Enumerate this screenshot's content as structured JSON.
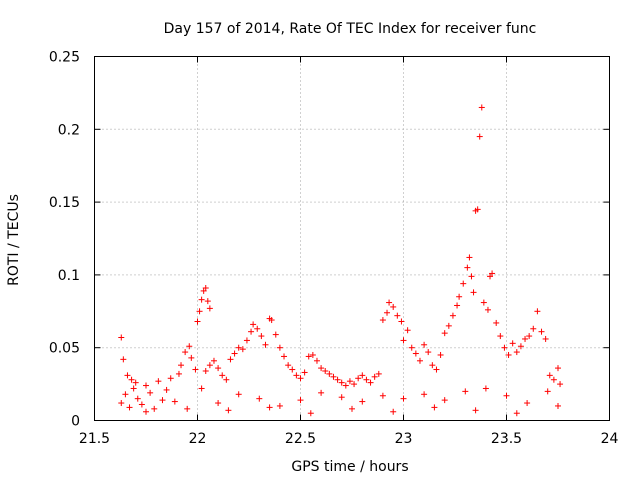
{
  "chart_data": {
    "type": "scatter",
    "title": "Day 157 of 2014, Rate Of TEC Index for receiver func",
    "xlabel": "GPS time / hours",
    "ylabel": "ROTI / TECUs",
    "xlim": [
      21.5,
      24
    ],
    "ylim": [
      0,
      0.25
    ],
    "x_ticks": [
      21.5,
      22,
      22.5,
      23,
      23.5,
      24
    ],
    "x_tick_labels": [
      "21.5",
      "22",
      "22.5",
      "23",
      "23.5",
      "24"
    ],
    "y_ticks": [
      0,
      0.05,
      0.1,
      0.15,
      0.2,
      0.25
    ],
    "y_tick_labels": [
      "0",
      "0.05",
      "0.1",
      "0.15",
      "0.2",
      "0.25"
    ],
    "grid": true,
    "marker": "+",
    "color": "#ff0000",
    "series": [
      {
        "name": "ROTI",
        "points": [
          [
            21.63,
            0.057
          ],
          [
            21.64,
            0.042
          ],
          [
            21.66,
            0.031
          ],
          [
            21.68,
            0.028
          ],
          [
            21.7,
            0.026
          ],
          [
            21.63,
            0.012
          ],
          [
            21.65,
            0.018
          ],
          [
            21.67,
            0.009
          ],
          [
            21.69,
            0.022
          ],
          [
            21.71,
            0.015
          ],
          [
            21.73,
            0.011
          ],
          [
            21.75,
            0.024
          ],
          [
            21.77,
            0.019
          ],
          [
            21.79,
            0.008
          ],
          [
            21.81,
            0.027
          ],
          [
            21.83,
            0.014
          ],
          [
            21.85,
            0.021
          ],
          [
            21.87,
            0.029
          ],
          [
            21.89,
            0.013
          ],
          [
            21.91,
            0.032
          ],
          [
            21.92,
            0.038
          ],
          [
            21.94,
            0.047
          ],
          [
            21.96,
            0.051
          ],
          [
            21.97,
            0.043
          ],
          [
            21.99,
            0.035
          ],
          [
            22.0,
            0.068
          ],
          [
            22.01,
            0.075
          ],
          [
            22.02,
            0.083
          ],
          [
            22.03,
            0.089
          ],
          [
            22.04,
            0.091
          ],
          [
            22.05,
            0.082
          ],
          [
            22.06,
            0.077
          ],
          [
            22.02,
            0.022
          ],
          [
            22.04,
            0.034
          ],
          [
            22.06,
            0.038
          ],
          [
            22.08,
            0.041
          ],
          [
            22.1,
            0.036
          ],
          [
            22.12,
            0.031
          ],
          [
            22.14,
            0.028
          ],
          [
            22.16,
            0.042
          ],
          [
            22.18,
            0.046
          ],
          [
            22.2,
            0.05
          ],
          [
            22.22,
            0.049
          ],
          [
            22.24,
            0.055
          ],
          [
            22.26,
            0.061
          ],
          [
            22.27,
            0.066
          ],
          [
            22.29,
            0.063
          ],
          [
            22.31,
            0.058
          ],
          [
            22.33,
            0.052
          ],
          [
            22.35,
            0.07
          ],
          [
            22.36,
            0.069
          ],
          [
            22.38,
            0.059
          ],
          [
            22.4,
            0.05
          ],
          [
            22.42,
            0.044
          ],
          [
            22.44,
            0.038
          ],
          [
            22.46,
            0.035
          ],
          [
            22.48,
            0.031
          ],
          [
            22.5,
            0.029
          ],
          [
            22.52,
            0.033
          ],
          [
            22.54,
            0.044
          ],
          [
            22.56,
            0.045
          ],
          [
            22.58,
            0.041
          ],
          [
            22.6,
            0.036
          ],
          [
            22.62,
            0.034
          ],
          [
            22.64,
            0.032
          ],
          [
            22.66,
            0.03
          ],
          [
            22.68,
            0.028
          ],
          [
            22.7,
            0.026
          ],
          [
            22.72,
            0.024
          ],
          [
            22.74,
            0.027
          ],
          [
            22.76,
            0.025
          ],
          [
            22.78,
            0.029
          ],
          [
            22.8,
            0.031
          ],
          [
            22.82,
            0.028
          ],
          [
            22.84,
            0.026
          ],
          [
            22.86,
            0.03
          ],
          [
            22.88,
            0.032
          ],
          [
            22.9,
            0.069
          ],
          [
            22.92,
            0.074
          ],
          [
            22.93,
            0.081
          ],
          [
            22.95,
            0.078
          ],
          [
            22.97,
            0.072
          ],
          [
            22.99,
            0.068
          ],
          [
            23.0,
            0.055
          ],
          [
            23.02,
            0.062
          ],
          [
            23.04,
            0.05
          ],
          [
            23.06,
            0.046
          ],
          [
            23.08,
            0.041
          ],
          [
            23.1,
            0.052
          ],
          [
            23.12,
            0.047
          ],
          [
            23.14,
            0.038
          ],
          [
            23.16,
            0.035
          ],
          [
            23.18,
            0.045
          ],
          [
            23.2,
            0.06
          ],
          [
            23.22,
            0.065
          ],
          [
            23.24,
            0.072
          ],
          [
            23.26,
            0.079
          ],
          [
            23.27,
            0.085
          ],
          [
            23.29,
            0.094
          ],
          [
            23.31,
            0.105
          ],
          [
            23.32,
            0.112
          ],
          [
            23.33,
            0.099
          ],
          [
            23.34,
            0.088
          ],
          [
            23.35,
            0.144
          ],
          [
            23.36,
            0.145
          ],
          [
            23.37,
            0.195
          ],
          [
            23.38,
            0.215
          ],
          [
            23.39,
            0.081
          ],
          [
            23.41,
            0.076
          ],
          [
            23.42,
            0.099
          ],
          [
            23.43,
            0.101
          ],
          [
            23.45,
            0.067
          ],
          [
            23.47,
            0.058
          ],
          [
            23.49,
            0.05
          ],
          [
            23.51,
            0.045
          ],
          [
            23.53,
            0.053
          ],
          [
            23.55,
            0.047
          ],
          [
            23.57,
            0.051
          ],
          [
            23.59,
            0.056
          ],
          [
            23.61,
            0.058
          ],
          [
            23.63,
            0.063
          ],
          [
            23.65,
            0.075
          ],
          [
            23.67,
            0.061
          ],
          [
            23.69,
            0.056
          ],
          [
            23.71,
            0.031
          ],
          [
            23.73,
            0.028
          ],
          [
            23.75,
            0.036
          ],
          [
            23.76,
            0.025
          ],
          [
            23.1,
            0.018
          ],
          [
            23.2,
            0.014
          ],
          [
            23.3,
            0.02
          ],
          [
            23.4,
            0.022
          ],
          [
            23.5,
            0.017
          ],
          [
            23.6,
            0.012
          ],
          [
            23.7,
            0.02
          ],
          [
            22.1,
            0.012
          ],
          [
            22.2,
            0.018
          ],
          [
            22.3,
            0.015
          ],
          [
            22.4,
            0.01
          ],
          [
            22.5,
            0.014
          ],
          [
            22.6,
            0.019
          ],
          [
            22.7,
            0.016
          ],
          [
            22.8,
            0.013
          ],
          [
            22.9,
            0.017
          ],
          [
            23.0,
            0.015
          ],
          [
            21.75,
            0.006
          ],
          [
            21.95,
            0.008
          ],
          [
            22.15,
            0.007
          ],
          [
            22.35,
            0.009
          ],
          [
            22.55,
            0.005
          ],
          [
            22.75,
            0.008
          ],
          [
            22.95,
            0.006
          ],
          [
            23.15,
            0.009
          ],
          [
            23.35,
            0.007
          ],
          [
            23.55,
            0.005
          ],
          [
            23.75,
            0.01
          ]
        ]
      }
    ]
  }
}
